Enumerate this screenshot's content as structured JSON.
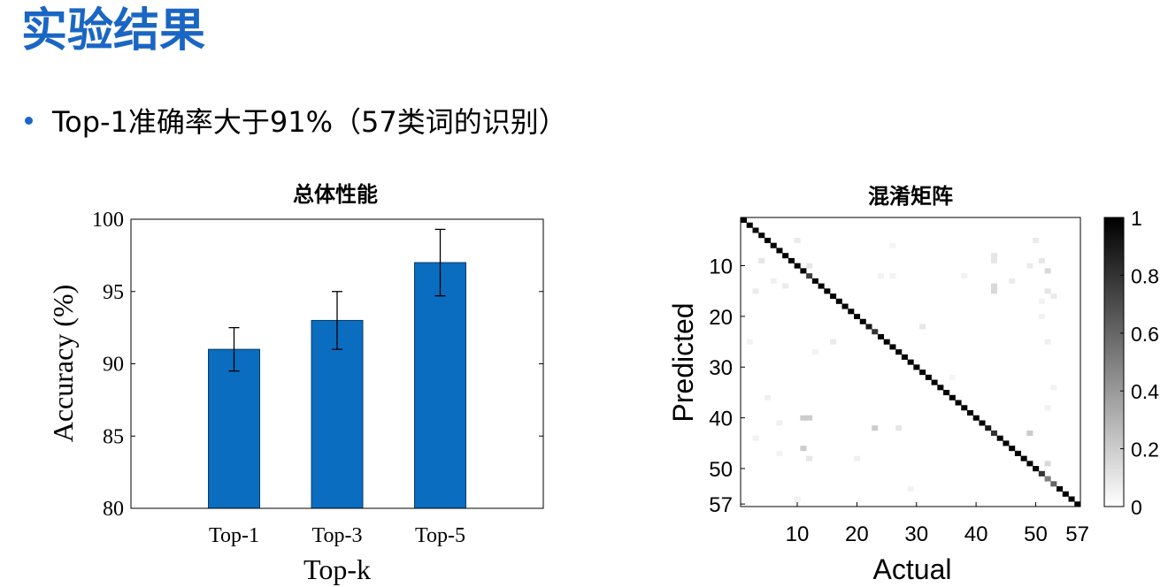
{
  "slide": {
    "title": "实验结果",
    "bullet": "Top-1准确率大于91%（57类词的识别）"
  },
  "colors": {
    "title": "#1a66c4",
    "bar": "#0a6dbf",
    "bullet": "#1a66c4"
  },
  "chart_data": [
    {
      "type": "bar",
      "title": "总体性能",
      "categories": [
        "Top-1",
        "Top-3",
        "Top-5"
      ],
      "values": [
        91,
        93,
        97
      ],
      "errors": [
        1.5,
        2.0,
        2.3
      ],
      "xlabel": "Top-k",
      "ylabel": "Accuracy (%)",
      "ylim": [
        80,
        100
      ],
      "yticks": [
        80,
        85,
        90,
        95,
        100
      ],
      "grid": false
    },
    {
      "type": "heatmap",
      "title": "混淆矩阵",
      "xlabel": "Actual",
      "ylabel": "Predicted",
      "size": 57,
      "xticks": [
        10,
        20,
        30,
        40,
        50,
        57
      ],
      "yticks": [
        10,
        20,
        30,
        40,
        50,
        57
      ],
      "colorbar": {
        "min": 0,
        "max": 1,
        "ticks": [
          0,
          0.2,
          0.4,
          0.6,
          0.8,
          1
        ],
        "colormap": "white-to-black"
      },
      "diagonal": [
        1,
        1,
        0.95,
        1,
        1,
        1,
        1,
        1,
        1,
        1,
        1,
        0.75,
        1,
        1,
        1,
        1,
        1,
        1,
        1,
        1,
        1,
        0.9,
        0.8,
        1,
        1,
        1,
        1,
        1,
        1,
        1,
        1,
        1,
        1,
        1,
        1,
        1,
        1,
        1,
        1,
        1,
        1,
        0.9,
        0.8,
        1,
        1,
        1,
        1,
        1,
        1,
        1,
        0.8,
        0.5,
        0.6,
        1,
        1,
        1,
        1
      ],
      "off_diagonal": [
        [
          4,
          9,
          0.1
        ],
        [
          6,
          13,
          0.06
        ],
        [
          8,
          14,
          0.08
        ],
        [
          10,
          10,
          0.05
        ],
        [
          12,
          10,
          0.1
        ],
        [
          10,
          5,
          0.08
        ],
        [
          3,
          15,
          0.08
        ],
        [
          2,
          25,
          0.05
        ],
        [
          13,
          27,
          0.05
        ],
        [
          5,
          36,
          0.06
        ],
        [
          7,
          41,
          0.06
        ],
        [
          3,
          44,
          0.05
        ],
        [
          11,
          40,
          0.2
        ],
        [
          12,
          40,
          0.2
        ],
        [
          11,
          46,
          0.2
        ],
        [
          12,
          48,
          0.1
        ],
        [
          7,
          47,
          0.05
        ],
        [
          10,
          56,
          0.05
        ],
        [
          23,
          42,
          0.2
        ],
        [
          27,
          42,
          0.1
        ],
        [
          31,
          22,
          0.1
        ],
        [
          16,
          25,
          0.08
        ],
        [
          24,
          12,
          0.05
        ],
        [
          26,
          12,
          0.05
        ],
        [
          38,
          12,
          0.05
        ],
        [
          43,
          8,
          0.1
        ],
        [
          43,
          9,
          0.1
        ],
        [
          43,
          14,
          0.15
        ],
        [
          43,
          15,
          0.15
        ],
        [
          46,
          13,
          0.08
        ],
        [
          49,
          10,
          0.08
        ],
        [
          50,
          5,
          0.08
        ],
        [
          51,
          9,
          0.1
        ],
        [
          52,
          11,
          0.15
        ],
        [
          52,
          15,
          0.1
        ],
        [
          53,
          16,
          0.08
        ],
        [
          51,
          20,
          0.05
        ],
        [
          52,
          25,
          0.06
        ],
        [
          53,
          34,
          0.05
        ],
        [
          52,
          38,
          0.05
        ],
        [
          49,
          43,
          0.2
        ],
        [
          51,
          51,
          0.2
        ],
        [
          52,
          52,
          0.1
        ],
        [
          53,
          53,
          0.1
        ],
        [
          20,
          48,
          0.06
        ],
        [
          29,
          54,
          0.05
        ],
        [
          36,
          32,
          0.04
        ],
        [
          26,
          6,
          0.04
        ],
        [
          51,
          17,
          0.05
        ],
        [
          52,
          49,
          0.15
        ]
      ]
    }
  ]
}
